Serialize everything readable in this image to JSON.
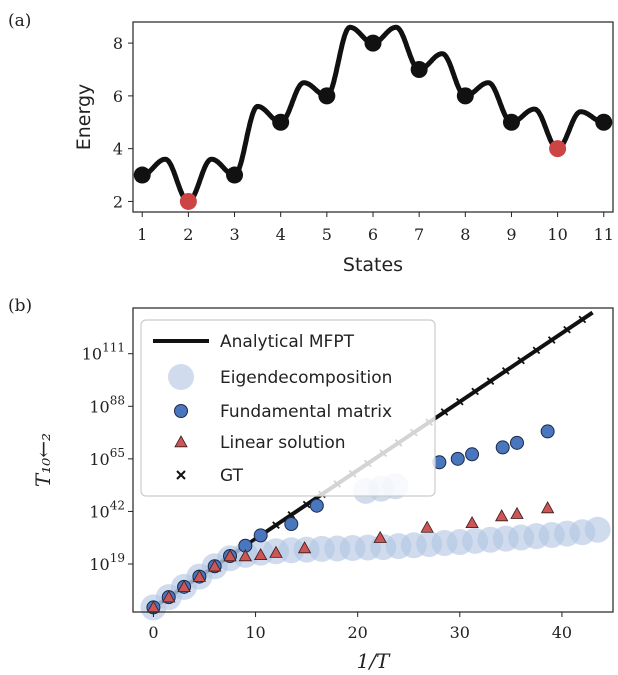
{
  "chart_data": [
    {
      "panel_label": "(a)",
      "type": "line",
      "xlabel": "States",
      "ylabel": "Energy",
      "xlim": [
        0.8,
        11.2
      ],
      "ylim": [
        1.6,
        8.8
      ],
      "x_ticks": [
        1,
        2,
        3,
        4,
        5,
        6,
        7,
        8,
        9,
        10,
        11
      ],
      "y_ticks": [
        2,
        4,
        6,
        8
      ],
      "minima": {
        "x": [
          1,
          2,
          3,
          4,
          5,
          6,
          7,
          8,
          9,
          10,
          11
        ],
        "y": [
          3,
          2,
          3,
          5,
          6,
          8,
          7,
          6,
          5,
          4,
          5
        ]
      },
      "barriers": [
        3.6,
        3.6,
        5.6,
        6.5,
        8.6,
        8.6,
        7.6,
        6.5,
        5.5,
        5.4
      ],
      "highlighted_states": [
        2,
        10
      ],
      "colors": {
        "curve": "#111111",
        "minimum": "#111111",
        "highlight": "#cc4444"
      }
    },
    {
      "panel_label": "(b)",
      "type": "scatter",
      "xlabel": "1/T",
      "ylabel": "T₁₀←₂",
      "y_scale": "log10",
      "xlim": [
        -2,
        45
      ],
      "ylim_log10": [
        -2,
        131
      ],
      "x_ticks": [
        0,
        10,
        20,
        30,
        40
      ],
      "y_ticks": [
        {
          "exp": 19,
          "label": "19"
        },
        {
          "exp": 42,
          "label": "42"
        },
        {
          "exp": 65,
          "label": "65"
        },
        {
          "exp": 88,
          "label": "88"
        },
        {
          "exp": 111,
          "label": "111"
        }
      ],
      "tick_base": "10",
      "legend": {
        "position": "upper-left",
        "entries": [
          "Analytical MFPT",
          "Eigendecomposition",
          "Fundamental matrix",
          "Linear solution",
          "GT"
        ]
      },
      "series": [
        {
          "name": "Analytical MFPT",
          "marker": "line",
          "x": [
            0,
            43
          ],
          "log10_y": [
            0,
            129
          ]
        },
        {
          "name": "Eigendecomposition",
          "marker": "big-circle",
          "x": [
            0,
            1.5,
            3,
            4.5,
            6,
            7.5,
            9,
            10.5,
            12,
            13.5,
            15,
            16.5,
            18,
            19.5,
            21,
            22.5,
            24,
            25.5,
            27,
            28.5,
            30,
            31.5,
            33,
            34.5,
            36,
            37.5,
            39,
            40.5,
            42,
            43.5
          ],
          "log10_y": [
            0,
            4.5,
            9,
            13.5,
            18,
            21.5,
            23,
            24,
            24.6,
            25,
            25.3,
            25.6,
            25.8,
            26,
            26.2,
            26.4,
            26.8,
            27.2,
            27.7,
            28.2,
            28.6,
            29.1,
            29.6,
            30.1,
            30.6,
            31.2,
            31.7,
            32.3,
            32.9,
            34
          ]
        },
        {
          "name": "Eigendecomposition (outlier points)",
          "marker": "big-circle",
          "x": [
            20.8,
            22.3,
            23.7
          ],
          "log10_y": [
            51,
            52,
            53
          ]
        },
        {
          "name": "Fundamental matrix",
          "marker": "circle",
          "x": [
            0,
            1.5,
            3,
            4.5,
            6,
            7.5,
            9,
            10.5,
            13.5,
            16,
            28,
            29.8,
            31.2,
            34.2,
            35.6,
            38.6
          ],
          "log10_y": [
            0,
            4.5,
            9,
            13.5,
            18,
            22.5,
            27,
            31.5,
            36.5,
            44.5,
            63.5,
            65,
            67,
            70,
            72,
            77
          ]
        },
        {
          "name": "Linear solution",
          "marker": "triangle",
          "x": [
            0,
            1.5,
            3,
            4.5,
            6,
            7.5,
            9,
            10.5,
            12,
            14.8,
            22.2,
            26.8,
            31.2,
            34.1,
            35.6,
            38.6
          ],
          "log10_y": [
            0,
            4.5,
            9,
            13.5,
            18,
            22.5,
            22.5,
            23,
            24,
            26,
            30.5,
            35,
            37,
            40,
            41,
            43.5
          ]
        },
        {
          "name": "GT",
          "marker": "x",
          "x_step": 1.5,
          "x_max": 43,
          "slope_log10": 3
        }
      ]
    }
  ]
}
